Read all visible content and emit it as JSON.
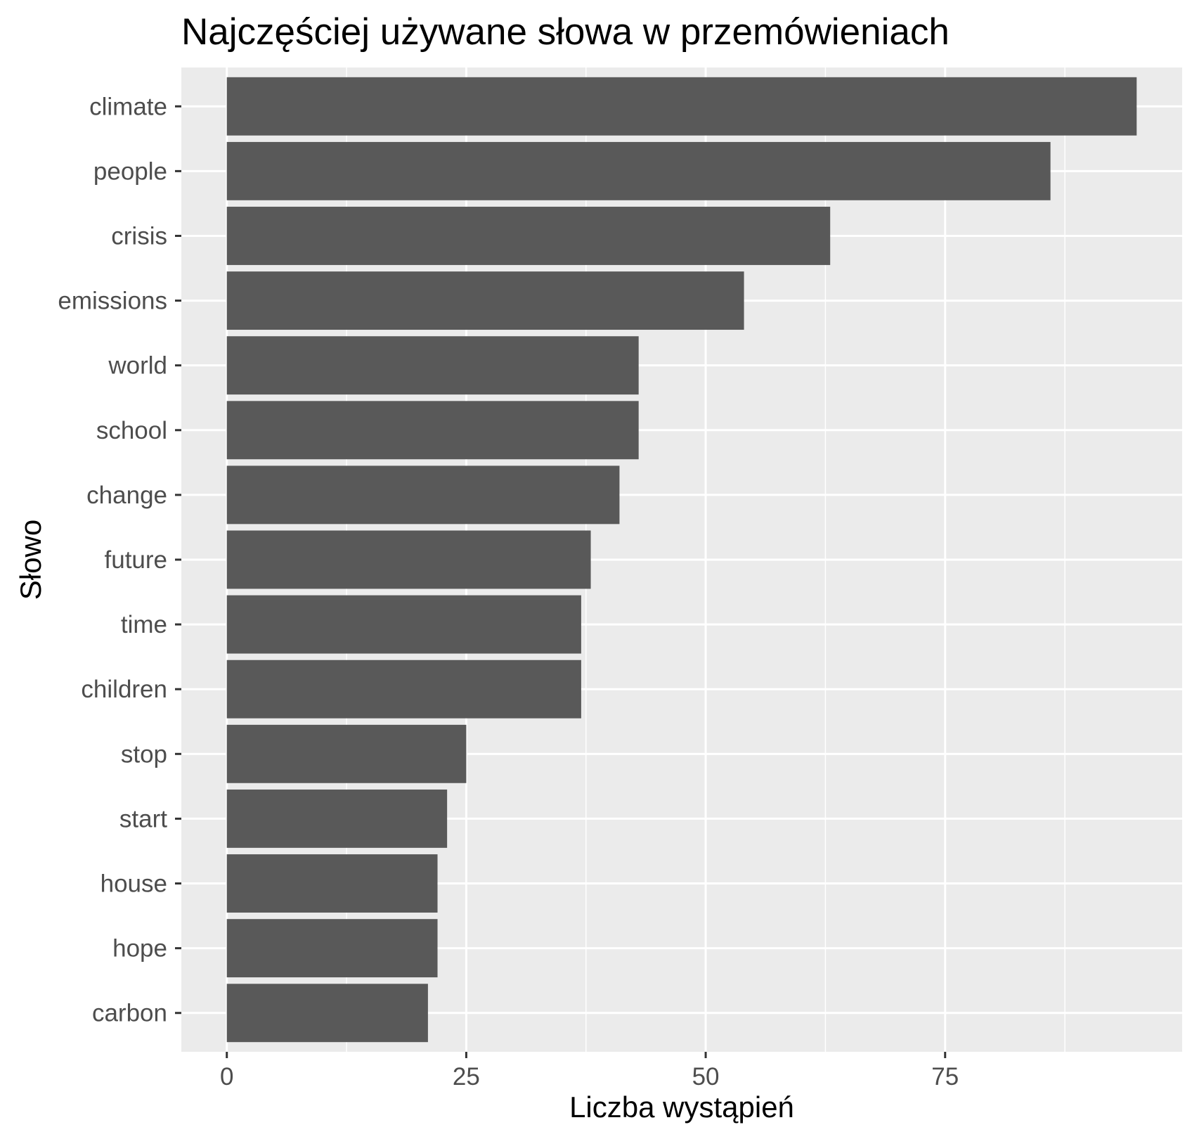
{
  "chart_data": {
    "type": "bar",
    "orientation": "horizontal",
    "title": "Najczęściej używane słowa w przemówieniach",
    "xlabel": "Liczba wystąpień",
    "ylabel": "Słowo",
    "categories": [
      "climate",
      "people",
      "crisis",
      "emissions",
      "world",
      "school",
      "change",
      "future",
      "time",
      "children",
      "stop",
      "start",
      "house",
      "hope",
      "carbon"
    ],
    "values": [
      95,
      86,
      63,
      54,
      43,
      43,
      41,
      38,
      37,
      37,
      25,
      23,
      22,
      22,
      21
    ],
    "xlim": [
      -4.75,
      99.75
    ],
    "xticks": [
      0,
      25,
      50,
      75
    ],
    "xtick_labels": [
      "0",
      "25",
      "50",
      "75"
    ],
    "grid": true,
    "colors": {
      "bar": "#595959",
      "panel": "#ebebeb",
      "grid": "#ffffff",
      "tick_text": "#4d4d4d"
    }
  }
}
